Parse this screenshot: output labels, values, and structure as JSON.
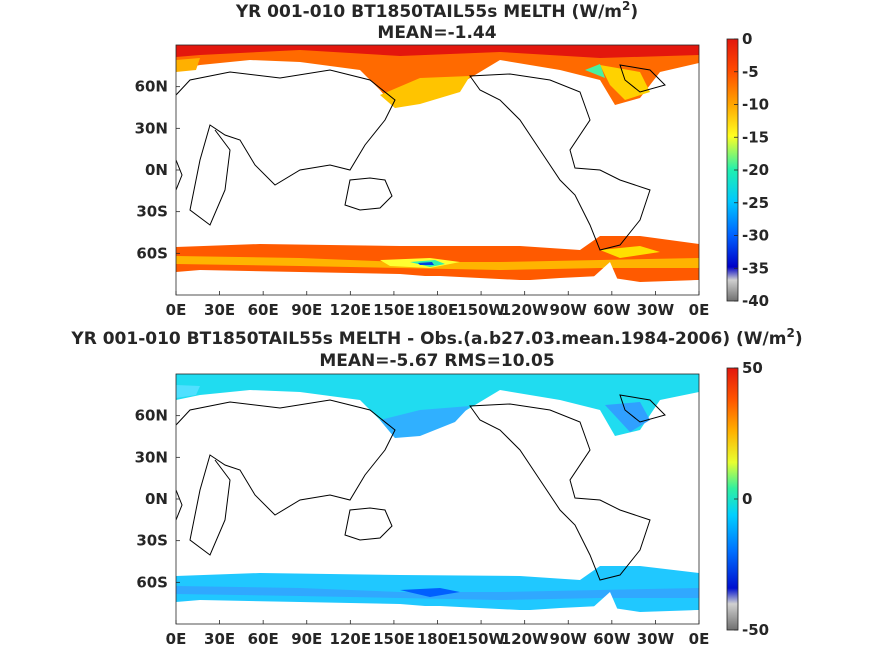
{
  "chart_data": [
    {
      "type": "heatmap",
      "title_main": "YR 001-010 BT1850TAIL55s  MELTH (W/m",
      "title_sup": "2",
      "title_close": ")",
      "subtitle": "MEAN=-1.44",
      "mean": -1.44,
      "x_tick_labels": [
        "0E",
        "30E",
        "60E",
        "90E",
        "120E",
        "150E",
        "180E",
        "150W",
        "120W",
        "90W",
        "60W",
        "30W",
        "0E"
      ],
      "y_tick_labels": [
        "60N",
        "30N",
        "0N",
        "30S",
        "60S"
      ],
      "y_ticks": [
        60,
        30,
        0,
        -30,
        -60
      ],
      "xlim": [
        0,
        360
      ],
      "ylim": [
        -90,
        90
      ],
      "colorbar": {
        "ticks": [
          0,
          -5,
          -10,
          -15,
          -20,
          -25,
          -30,
          -35,
          -40
        ],
        "tick_labels": [
          "0",
          "-5",
          "-10",
          "-15",
          "-20",
          "-25",
          "-30",
          "-35",
          "-40"
        ],
        "range": [
          -40,
          0
        ]
      }
    },
    {
      "type": "heatmap",
      "title_main": "YR 001-010 BT1850TAIL55s MELTH - Obs.(a.b27.03.mean.1984-2006) (W/m",
      "title_sup": "2",
      "title_close": ")",
      "subtitle": "MEAN=-5.67 RMS=10.05",
      "mean": -5.67,
      "rms": 10.05,
      "x_tick_labels": [
        "0E",
        "30E",
        "60E",
        "90E",
        "120E",
        "150E",
        "180E",
        "150W",
        "120W",
        "90W",
        "60W",
        "30W",
        "0E"
      ],
      "y_tick_labels": [
        "60N",
        "30N",
        "0N",
        "30S",
        "60S"
      ],
      "y_ticks": [
        60,
        30,
        0,
        -30,
        -60
      ],
      "xlim": [
        0,
        360
      ],
      "ylim": [
        -90,
        90
      ],
      "colorbar": {
        "ticks": [
          50,
          0,
          -50
        ],
        "tick_labels": [
          "50",
          "0",
          "-50"
        ],
        "range": [
          -50,
          50
        ]
      }
    }
  ]
}
